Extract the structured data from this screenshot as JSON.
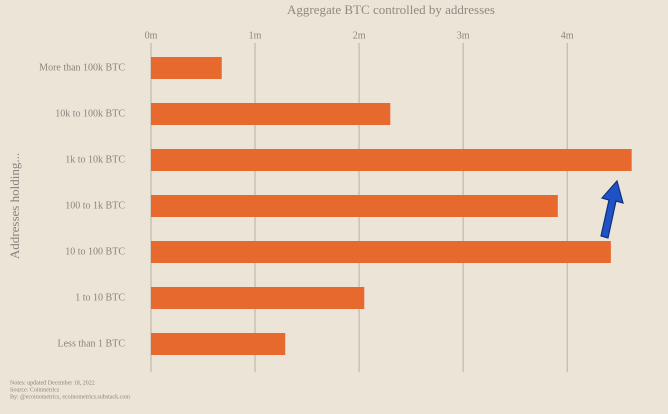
{
  "chart_data": {
    "type": "bar",
    "orientation": "horizontal",
    "title": "Aggregate BTC controlled by addresses",
    "y_label": "Addresses holding...",
    "categories": [
      "More than 100k BTC",
      "10k to 100k BTC",
      "1k to 10k BTC",
      "100 to 1k BTC",
      "10 to 100 BTC",
      "1 to 10 BTC",
      "Less than 1 BTC"
    ],
    "values": [
      0.68,
      2.3,
      4.62,
      3.91,
      4.42,
      2.05,
      1.29
    ],
    "color": "#e8692e",
    "xlim": [
      0,
      4.7
    ],
    "xticks": [
      {
        "value": 0,
        "label": "0m"
      },
      {
        "value": 1,
        "label": "1m"
      },
      {
        "value": 2,
        "label": "2m"
      },
      {
        "value": 3,
        "label": "3m"
      },
      {
        "value": 4,
        "label": "4m"
      }
    ],
    "grid": true,
    "notes": [
      "Notes: updated December 18, 2022",
      "Source: Coinmetrics",
      "By: @ecoinometrics, ecoinometrics.substack.com"
    ]
  }
}
